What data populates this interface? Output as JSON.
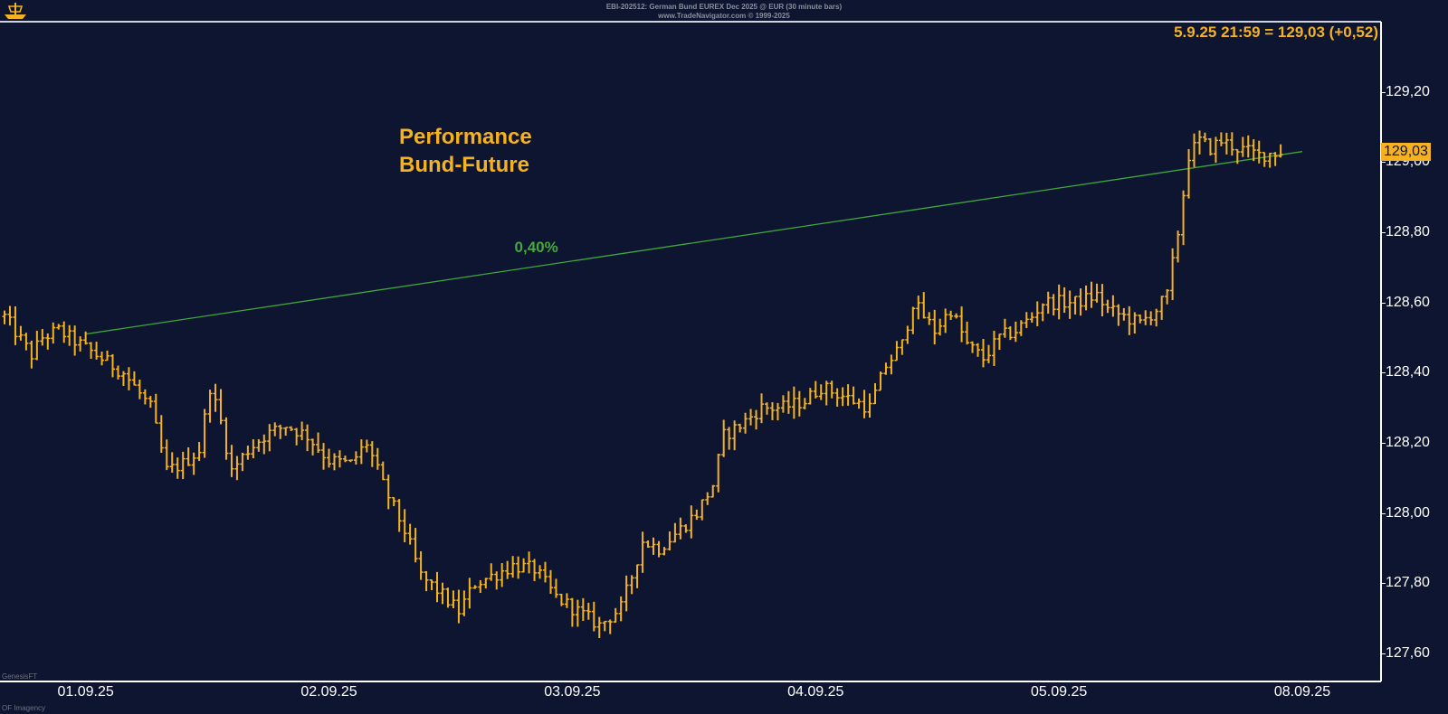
{
  "header": {
    "line1": "EBI-202512: German Bund EUREX Dec 2025 @ EUR (30 minute bars)",
    "line2": "www.TradeNavigator.com © 1999-2025"
  },
  "footer": {
    "left_top": "GenesisFT",
    "left_bottom": "OF Imagency"
  },
  "chart_data": {
    "type": "ohlc",
    "title": "Performance\nBund-Future",
    "title_lines": [
      "Performance",
      "Bund-Future"
    ],
    "readout": "5.9.25 21:59 = 129,03 (+0,52)",
    "last_price_label": "129,03",
    "last_price": 129.03,
    "ylim": [
      127.52,
      129.4
    ],
    "yticks": [
      {
        "value": 127.6,
        "label": "127,60"
      },
      {
        "value": 127.8,
        "label": "127,80"
      },
      {
        "value": 128.0,
        "label": "128,00"
      },
      {
        "value": 128.2,
        "label": "128,20"
      },
      {
        "value": 128.4,
        "label": "128,40"
      },
      {
        "value": 128.6,
        "label": "128,60"
      },
      {
        "value": 128.8,
        "label": "128,80"
      },
      {
        "value": 129.0,
        "label": "129,00"
      },
      {
        "value": 129.2,
        "label": "129,20"
      }
    ],
    "xticks": [
      {
        "bar": 15,
        "label": "01.09.25"
      },
      {
        "bar": 60,
        "label": "02.09.25"
      },
      {
        "bar": 105,
        "label": "03.09.25"
      },
      {
        "bar": 150,
        "label": "04.09.25"
      },
      {
        "bar": 195,
        "label": "05.09.25"
      },
      {
        "bar": 240,
        "label": "08.09.25"
      }
    ],
    "bar_count": 242,
    "trendline": {
      "label": "0,40%",
      "from": {
        "bar": 15,
        "value": 128.51
      },
      "to": {
        "bar": 240,
        "value": 129.03
      }
    },
    "price_path": [
      [
        0,
        128.56
      ],
      [
        5,
        128.45
      ],
      [
        7,
        128.5
      ],
      [
        10,
        128.52
      ],
      [
        14,
        128.48
      ],
      [
        18,
        128.44
      ],
      [
        22,
        128.4
      ],
      [
        27,
        128.3
      ],
      [
        30,
        128.12
      ],
      [
        33,
        128.14
      ],
      [
        36,
        128.18
      ],
      [
        38,
        128.36
      ],
      [
        40,
        128.26
      ],
      [
        42,
        128.12
      ],
      [
        45,
        128.18
      ],
      [
        48,
        128.22
      ],
      [
        52,
        128.25
      ],
      [
        56,
        128.22
      ],
      [
        60,
        128.15
      ],
      [
        64,
        128.14
      ],
      [
        67,
        128.2
      ],
      [
        70,
        128.08
      ],
      [
        74,
        127.95
      ],
      [
        77,
        127.82
      ],
      [
        80,
        127.78
      ],
      [
        84,
        127.72
      ],
      [
        87,
        127.8
      ],
      [
        90,
        127.82
      ],
      [
        94,
        127.85
      ],
      [
        98,
        127.84
      ],
      [
        102,
        127.76
      ],
      [
        106,
        127.72
      ],
      [
        110,
        127.68
      ],
      [
        114,
        127.73
      ],
      [
        116,
        127.82
      ],
      [
        118,
        127.92
      ],
      [
        121,
        127.9
      ],
      [
        124,
        127.94
      ],
      [
        128,
        128.0
      ],
      [
        131,
        128.08
      ],
      [
        133,
        128.22
      ],
      [
        136,
        128.25
      ],
      [
        140,
        128.3
      ],
      [
        144,
        128.3
      ],
      [
        148,
        128.32
      ],
      [
        151,
        128.36
      ],
      [
        154,
        128.34
      ],
      [
        157,
        128.32
      ],
      [
        160,
        128.3
      ],
      [
        163,
        128.42
      ],
      [
        166,
        128.48
      ],
      [
        168,
        128.6
      ],
      [
        170,
        128.56
      ],
      [
        172,
        128.52
      ],
      [
        175,
        128.58
      ],
      [
        178,
        128.48
      ],
      [
        181,
        128.44
      ],
      [
        184,
        128.5
      ],
      [
        187,
        128.52
      ],
      [
        190,
        128.56
      ],
      [
        192,
        128.6
      ],
      [
        195,
        128.6
      ],
      [
        198,
        128.6
      ],
      [
        202,
        128.62
      ],
      [
        204,
        128.58
      ],
      [
        207,
        128.56
      ],
      [
        210,
        128.54
      ],
      [
        213,
        128.58
      ],
      [
        215,
        128.62
      ],
      [
        217,
        128.8
      ],
      [
        219,
        129.02
      ],
      [
        221,
        129.06
      ],
      [
        223,
        129.04
      ],
      [
        225,
        129.06
      ],
      [
        228,
        129.04
      ],
      [
        232,
        129.02
      ],
      [
        236,
        129.03
      ]
    ]
  }
}
